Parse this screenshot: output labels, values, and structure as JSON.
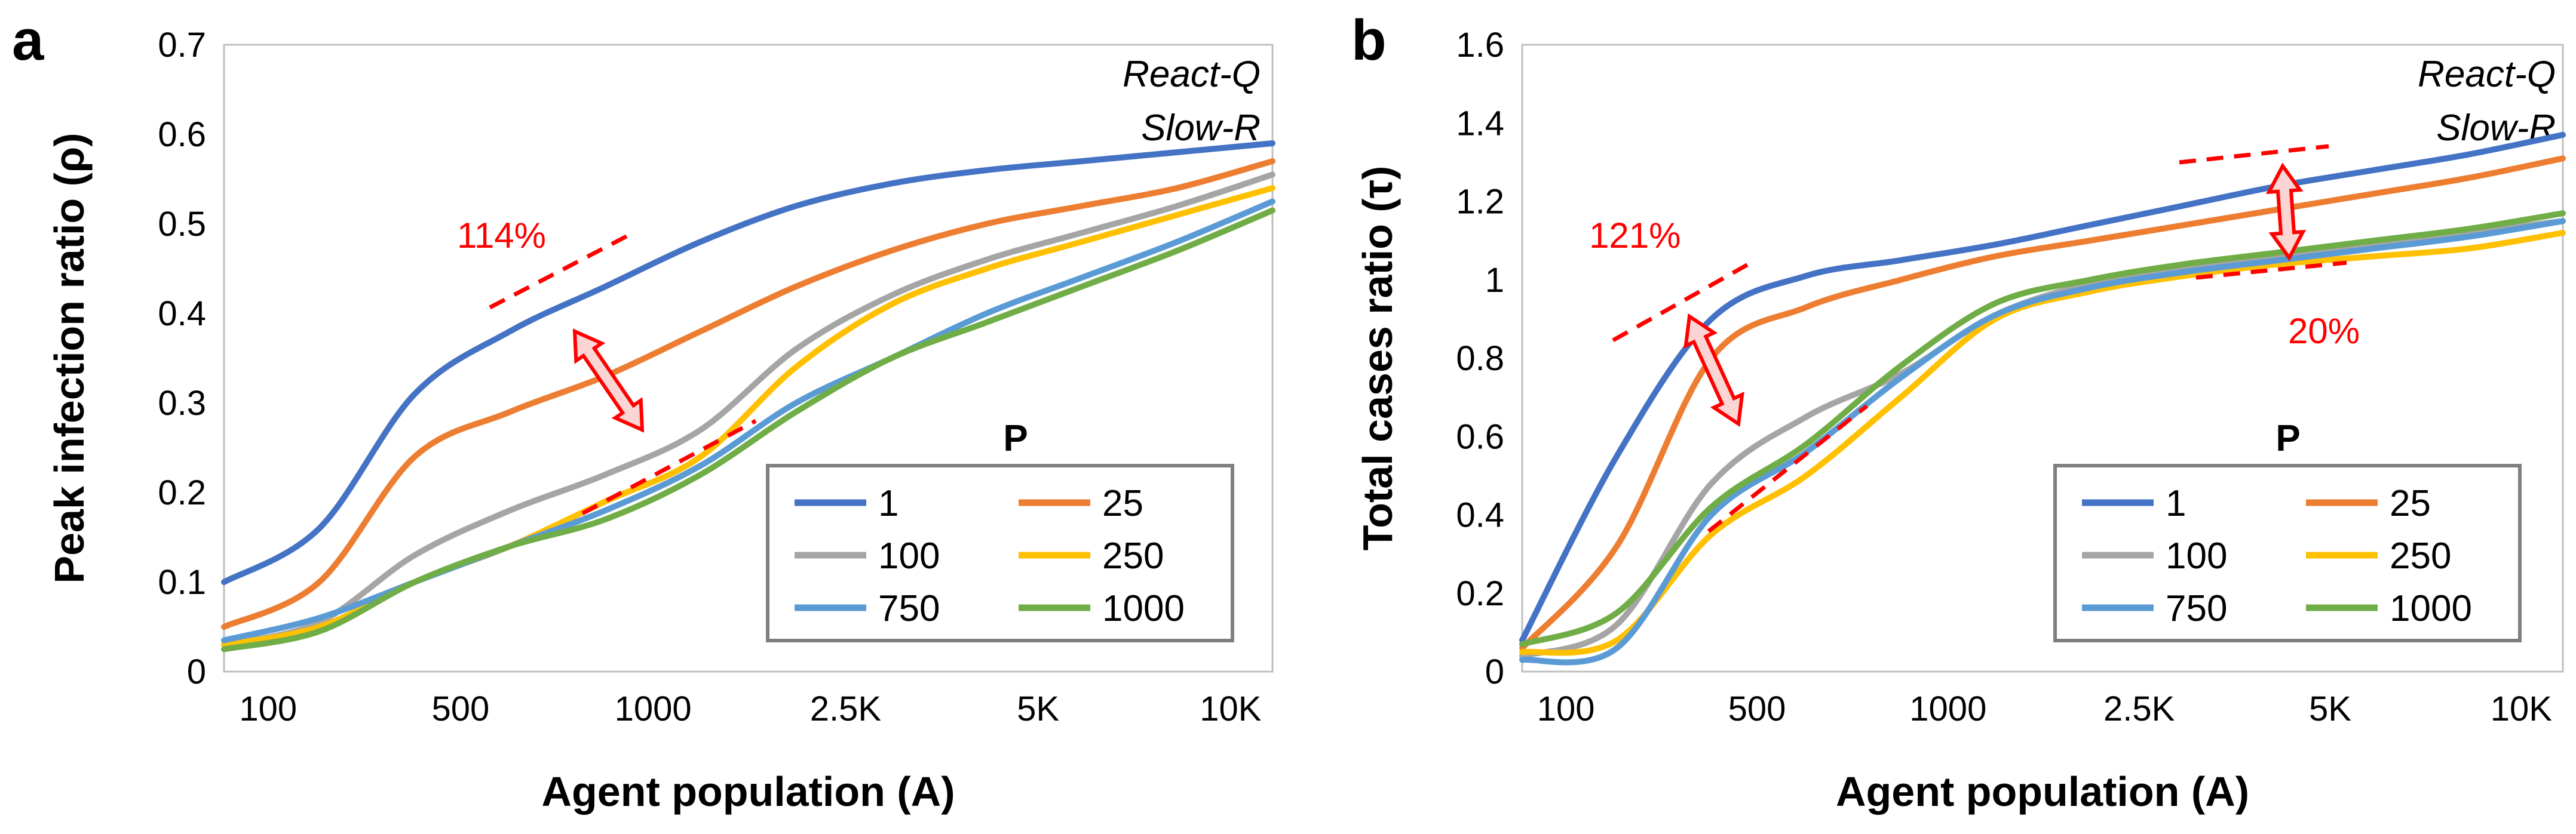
{
  "chart_data": [
    {
      "panel": "a",
      "type": "line",
      "ylabel": "Peak infection ratio (ρ)",
      "xlabel": "Agent population (A)",
      "ylim": [
        0,
        0.7
      ],
      "yticks": [
        "0",
        "0.1",
        "0.2",
        "0.3",
        "0.4",
        "0.5",
        "0.6",
        "0.7"
      ],
      "xticks": [
        "100",
        "500",
        "1000",
        "2.5K",
        "5K",
        "10K"
      ],
      "x": [
        0,
        0.5,
        1,
        1.5,
        2,
        2.5,
        3,
        3.5,
        4,
        4.5,
        5,
        5.5
      ],
      "notes": [
        "React-Q",
        "Slow-R"
      ],
      "legend_title": "P",
      "series": [
        {
          "name": "1",
          "color": "#4472c4",
          "values": [
            0.1,
            0.16,
            0.31,
            0.38,
            0.43,
            0.48,
            0.52,
            0.545,
            0.56,
            0.57,
            0.58,
            0.59
          ]
        },
        {
          "name": "25",
          "color": "#ed7d31",
          "values": [
            0.05,
            0.1,
            0.24,
            0.29,
            0.33,
            0.38,
            0.43,
            0.47,
            0.5,
            0.52,
            0.54,
            0.57
          ]
        },
        {
          "name": "100",
          "color": "#a5a5a5",
          "values": [
            0.03,
            0.055,
            0.13,
            0.18,
            0.22,
            0.27,
            0.36,
            0.42,
            0.46,
            0.49,
            0.52,
            0.555
          ]
        },
        {
          "name": "250",
          "color": "#ffc000",
          "values": [
            0.03,
            0.05,
            0.1,
            0.14,
            0.19,
            0.24,
            0.34,
            0.41,
            0.45,
            0.48,
            0.51,
            0.54
          ]
        },
        {
          "name": "750",
          "color": "#5b9bd5",
          "values": [
            0.035,
            0.06,
            0.1,
            0.14,
            0.18,
            0.23,
            0.3,
            0.35,
            0.4,
            0.44,
            0.48,
            0.525
          ]
        },
        {
          "name": "1000",
          "color": "#70ad47",
          "values": [
            0.025,
            0.045,
            0.1,
            0.14,
            0.17,
            0.22,
            0.29,
            0.35,
            0.39,
            0.43,
            0.47,
            0.515
          ]
        }
      ],
      "annotations": [
        {
          "text": "114%"
        }
      ]
    },
    {
      "panel": "b",
      "type": "line",
      "ylabel": "Total cases ratio (τ)",
      "xlabel": "Agent population (A)",
      "ylim": [
        0,
        1.6
      ],
      "yticks": [
        "0",
        "0.2",
        "0.4",
        "0.6",
        "0.8",
        "1",
        "1.2",
        "1.4",
        "1.6"
      ],
      "xticks": [
        "100",
        "500",
        "1000",
        "2.5K",
        "5K",
        "10K"
      ],
      "x": [
        0,
        0.5,
        1,
        1.5,
        2,
        2.5,
        3,
        3.5,
        4,
        4.5,
        5,
        5.5
      ],
      "notes": [
        "React-Q",
        "Slow-R"
      ],
      "legend_title": "P",
      "series": [
        {
          "name": "1",
          "color": "#4472c4",
          "values": [
            0.08,
            0.55,
            0.9,
            1.01,
            1.05,
            1.09,
            1.14,
            1.19,
            1.24,
            1.28,
            1.32,
            1.37
          ]
        },
        {
          "name": "25",
          "color": "#ed7d31",
          "values": [
            0.06,
            0.32,
            0.8,
            0.93,
            1.0,
            1.06,
            1.1,
            1.14,
            1.18,
            1.22,
            1.26,
            1.31
          ]
        },
        {
          "name": "100",
          "color": "#a5a5a5",
          "values": [
            0.04,
            0.12,
            0.48,
            0.65,
            0.76,
            0.91,
            0.99,
            1.03,
            1.06,
            1.09,
            1.12,
            1.15
          ]
        },
        {
          "name": "250",
          "color": "#ffc000",
          "values": [
            0.05,
            0.08,
            0.35,
            0.5,
            0.7,
            0.9,
            0.97,
            1.01,
            1.04,
            1.06,
            1.08,
            1.12
          ]
        },
        {
          "name": "750",
          "color": "#5b9bd5",
          "values": [
            0.03,
            0.06,
            0.4,
            0.56,
            0.75,
            0.91,
            0.98,
            1.02,
            1.05,
            1.08,
            1.11,
            1.15
          ]
        },
        {
          "name": "1000",
          "color": "#70ad47",
          "values": [
            0.07,
            0.15,
            0.42,
            0.58,
            0.78,
            0.94,
            1.0,
            1.04,
            1.07,
            1.1,
            1.13,
            1.17
          ]
        }
      ],
      "annotations": [
        {
          "text": "121%"
        },
        {
          "text": "20%"
        }
      ]
    }
  ]
}
